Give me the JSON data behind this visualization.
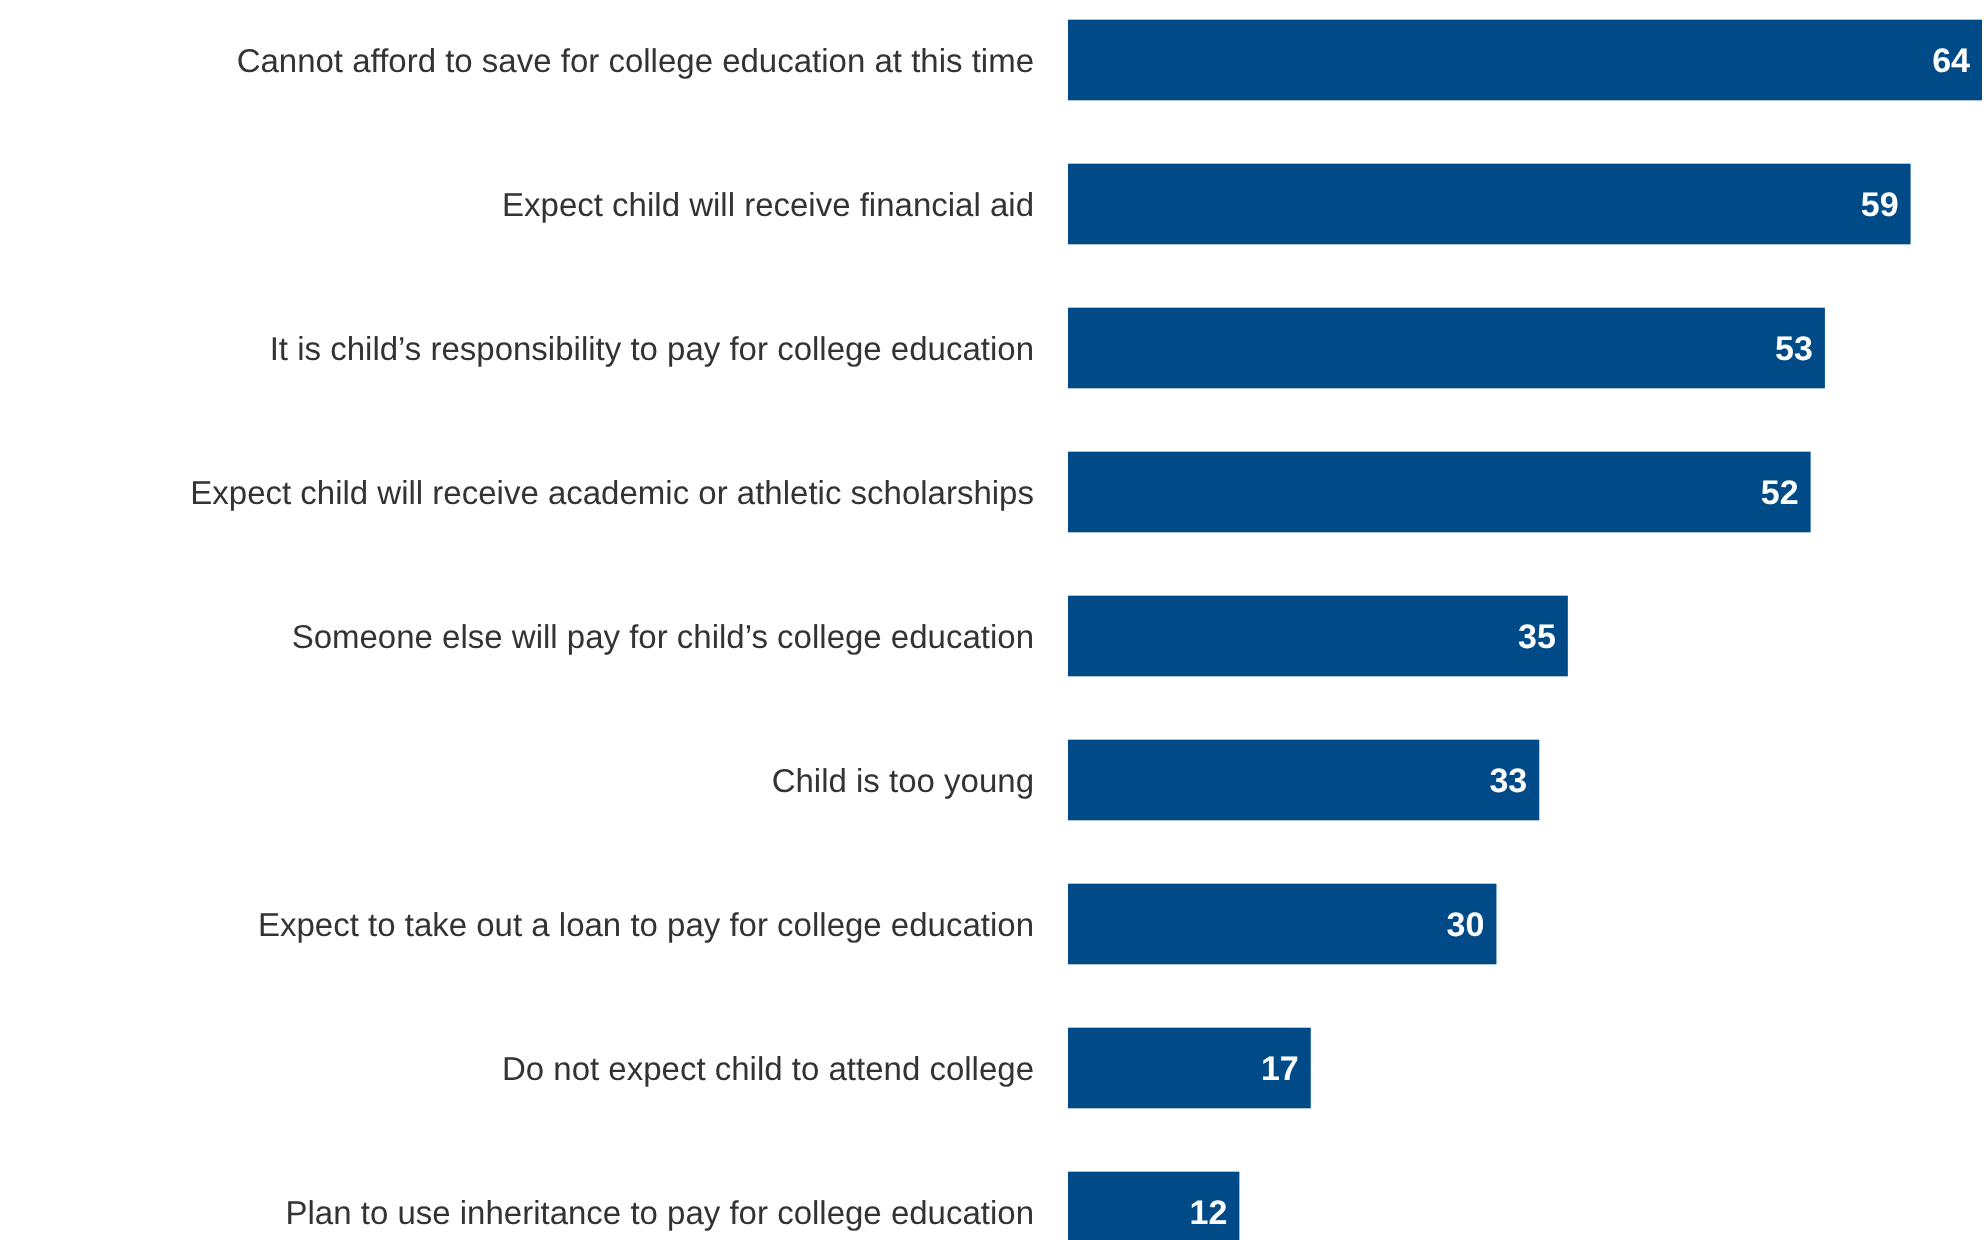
{
  "chart_data": {
    "type": "bar",
    "orientation": "horizontal",
    "categories": [
      "Cannot afford to save for college education at this time",
      "Expect child will receive financial aid",
      "It is child’s responsibility to pay for college education",
      "Expect child will receive academic or athletic scholarships",
      "Someone else will pay for child’s college education",
      "Child is too young",
      "Expect to take out a loan to pay for college education",
      "Do not expect child to attend college",
      "Plan to use inheritance to pay for college education"
    ],
    "values": [
      64,
      59,
      53,
      52,
      35,
      33,
      30,
      17,
      12
    ],
    "color": "#004b87",
    "data_labels": true
  }
}
